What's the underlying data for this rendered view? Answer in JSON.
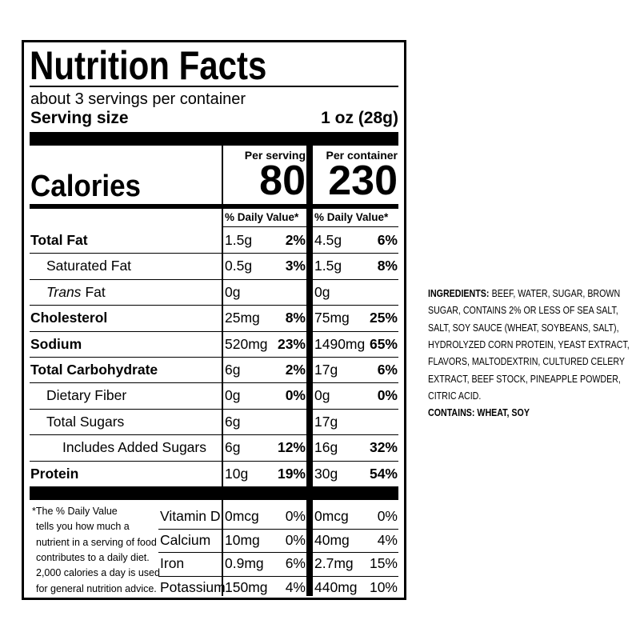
{
  "title": "Nutrition Facts",
  "servings": "about 3 servings per container",
  "serving_size": {
    "label": "Serving size",
    "value": "1 oz (28g)"
  },
  "columns": [
    "Per serving",
    "Per container"
  ],
  "calories": {
    "label": "Calories",
    "values": [
      "80",
      "230"
    ]
  },
  "dv_header": [
    "% Daily Value*",
    "% Daily Value*"
  ],
  "nutrients": [
    {
      "name": "Total Fat",
      "bold": true,
      "level": 0,
      "values": [
        {
          "amount": "1.5g",
          "dv": "2%"
        },
        {
          "amount": "4.5g",
          "dv": "6%"
        }
      ]
    },
    {
      "name": "Saturated Fat",
      "bold": false,
      "level": 1,
      "values": [
        {
          "amount": "0.5g",
          "dv": "3%"
        },
        {
          "amount": "1.5g",
          "dv": "8%"
        }
      ]
    },
    {
      "name_italic": "Trans",
      "name": "Fat",
      "bold": false,
      "level": 1,
      "values": [
        {
          "amount": "0g"
        },
        {
          "amount": "0g"
        }
      ]
    },
    {
      "name": "Cholesterol",
      "bold": true,
      "level": 0,
      "values": [
        {
          "amount": "25mg",
          "dv": "8%"
        },
        {
          "amount": "75mg",
          "dv": "25%"
        }
      ]
    },
    {
      "name": "Sodium",
      "bold": true,
      "level": 0,
      "values": [
        {
          "amount": "520mg",
          "dv": "23%"
        },
        {
          "amount": "1490mg",
          "dv": "65%"
        }
      ]
    },
    {
      "name": "Total Carbohydrate",
      "bold": true,
      "level": 0,
      "values": [
        {
          "amount": "6g",
          "dv": "2%"
        },
        {
          "amount": "17g",
          "dv": "6%"
        }
      ]
    },
    {
      "name": "Dietary Fiber",
      "bold": false,
      "level": 1,
      "values": [
        {
          "amount": "0g",
          "dv": "0%"
        },
        {
          "amount": "0g",
          "dv": "0%"
        }
      ]
    },
    {
      "name": "Total Sugars",
      "bold": false,
      "level": 1,
      "values": [
        {
          "amount": "6g"
        },
        {
          "amount": "17g"
        }
      ]
    },
    {
      "name": "Includes Added Sugars",
      "bold": false,
      "level": 2,
      "values": [
        {
          "amount": "6g",
          "dv": "12%"
        },
        {
          "amount": "16g",
          "dv": "32%"
        }
      ]
    },
    {
      "name": "Protein",
      "bold": true,
      "level": 0,
      "values": [
        {
          "amount": "10g",
          "dv": "19%"
        },
        {
          "amount": "30g",
          "dv": "54%"
        }
      ]
    }
  ],
  "footnote": [
    "*The % Daily Value",
    "tells you how much a",
    "nutrient in a serving of food",
    "contributes to a daily diet.",
    "2,000 calories a day is used",
    "for general nutrition advice."
  ],
  "vitamins": [
    {
      "name": "Vitamin D",
      "values": [
        {
          "amount": "0mcg",
          "dv": "0%"
        },
        {
          "amount": "0mcg",
          "dv": "0%"
        }
      ]
    },
    {
      "name": "Calcium",
      "values": [
        {
          "amount": "10mg",
          "dv": "0%"
        },
        {
          "amount": "40mg",
          "dv": "4%"
        }
      ]
    },
    {
      "name": "Iron",
      "values": [
        {
          "amount": "0.9mg",
          "dv": "6%"
        },
        {
          "amount": "2.7mg",
          "dv": "15%"
        }
      ]
    },
    {
      "name": "Potassium",
      "values": [
        {
          "amount": "150mg",
          "dv": "4%"
        },
        {
          "amount": "440mg",
          "dv": "10%"
        }
      ]
    }
  ],
  "ingredients": {
    "label": "INGREDIENTS:",
    "lines": [
      "BEEF, WATER, SUGAR, BROWN",
      "SUGAR, CONTAINS 2% OR LESS OF SEA SALT,",
      "SALT, SOY SAUCE (WHEAT, SOYBEANS, SALT),",
      "HYDROLYZED CORN PROTEIN, YEAST EXTRACT,",
      "FLAVORS, MALTODEXTRIN, CULTURED CELERY",
      "EXTRACT, BEEF STOCK, PINEAPPLE POWDER,",
      "CITRIC ACID."
    ]
  },
  "contains": "CONTAINS: WHEAT, SOY"
}
